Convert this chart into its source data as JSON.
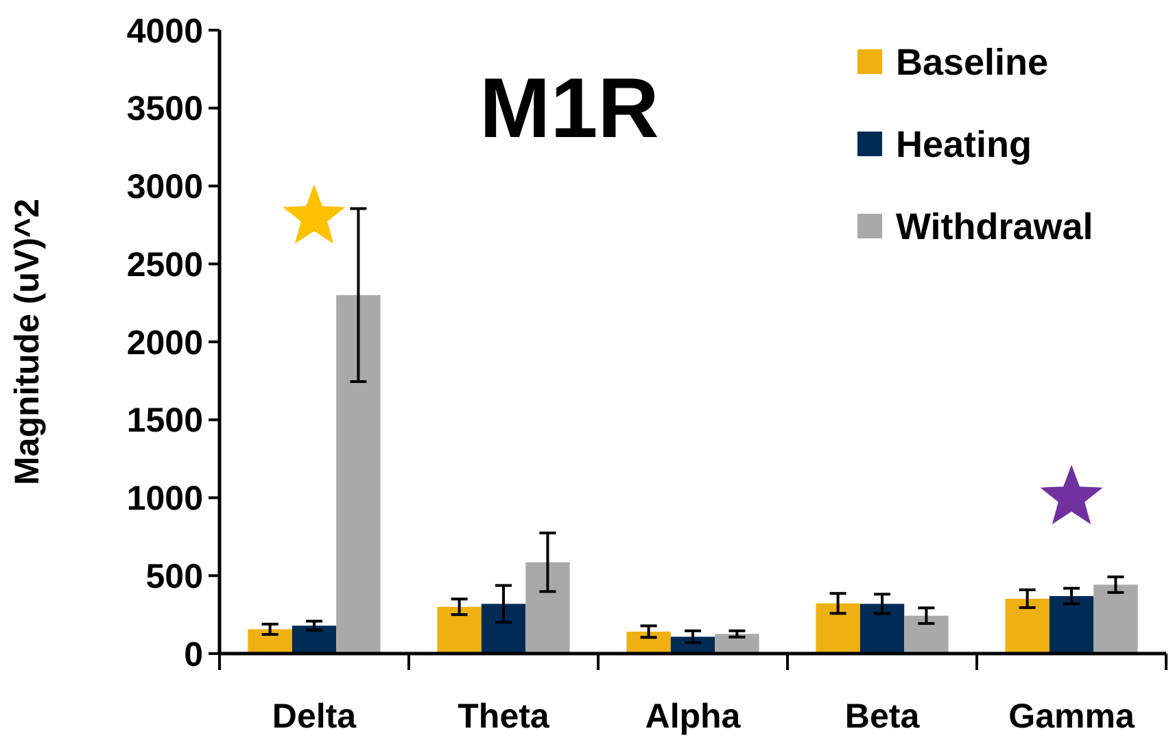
{
  "chart_data": {
    "type": "bar",
    "title": "M1R",
    "ylabel": "Magnitude (uV)^2",
    "categories": [
      "Delta",
      "Theta",
      "Alpha",
      "Beta",
      "Gamma"
    ],
    "ylim": [
      0,
      4000
    ],
    "yticks": [
      0,
      500,
      1000,
      1500,
      2000,
      2500,
      3000,
      3500,
      4000
    ],
    "grid": false,
    "legend": "top right",
    "series": [
      {
        "name": "Baseline",
        "color": "#eeb111",
        "values": [
          156,
          300,
          141,
          322,
          352
        ],
        "errors": [
          33,
          50,
          37,
          64,
          57
        ]
      },
      {
        "name": "Heating",
        "color": "#002b55",
        "values": [
          179,
          319,
          108,
          319,
          369
        ],
        "errors": [
          29,
          118,
          38,
          62,
          50
        ]
      },
      {
        "name": "Withdrawal",
        "color": "#a9a9a9",
        "values": [
          2300,
          586,
          126,
          243,
          442
        ],
        "errors": [
          555,
          188,
          20,
          50,
          50
        ]
      },
      {
        "type": "scatter",
        "marker": "star",
        "color": "#ffc000",
        "x": [
          "Delta"
        ],
        "values": [
          2800
        ]
      },
      {
        "type": "scatter",
        "marker": "star",
        "color": "#7030a0",
        "x": [
          "Gamma"
        ],
        "values": [
          1000
        ]
      }
    ]
  }
}
